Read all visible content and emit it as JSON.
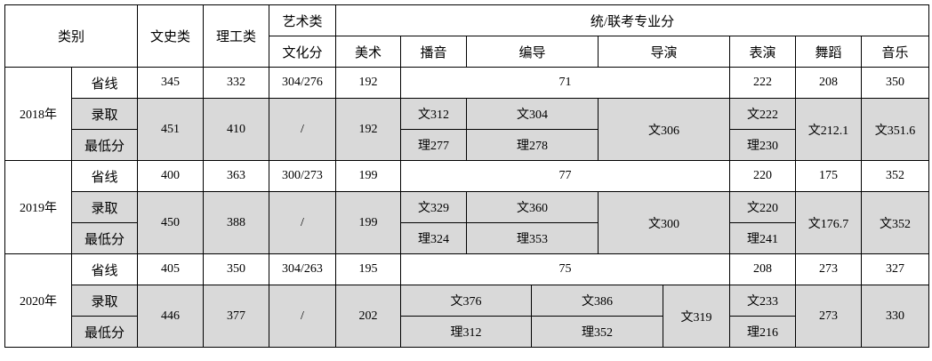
{
  "header": {
    "category": "类别",
    "liberal_arts": "文史类",
    "science": "理工类",
    "art": "艺术类",
    "art_culture": "文化分",
    "joint_exam": "统/联考专业分",
    "fine_arts": "美术",
    "broadcasting": "播音",
    "directing": "编导",
    "film_directing": "导演",
    "acting": "表演",
    "dance": "舞蹈",
    "music": "音乐"
  },
  "row_labels": {
    "province_line": "省线",
    "admission": "录取",
    "min_score": "最低分"
  },
  "years": [
    {
      "year": "2018年",
      "province": {
        "liberal": "345",
        "science": "332",
        "art_culture": "304/276",
        "fine_arts": "192",
        "joint": "71",
        "acting": "222",
        "dance": "208",
        "music": "350"
      },
      "admission": {
        "liberal": "451",
        "science": "410",
        "art_culture": "/",
        "fine_arts": "192",
        "broadcasting_wen": "文312",
        "broadcasting_li": "理277",
        "directing_wen": "文304",
        "directing_li": "理278",
        "film_directing": "文306",
        "acting_wen": "文222",
        "acting_li": "理230",
        "dance": "文212.1",
        "music": "文351.6"
      }
    },
    {
      "year": "2019年",
      "province": {
        "liberal": "400",
        "science": "363",
        "art_culture": "300/273",
        "fine_arts": "199",
        "joint": "77",
        "acting": "220",
        "dance": "175",
        "music": "352"
      },
      "admission": {
        "liberal": "450",
        "science": "388",
        "art_culture": "/",
        "fine_arts": "199",
        "broadcasting_wen": "文329",
        "broadcasting_li": "理324",
        "directing_wen": "文360",
        "directing_li": "理353",
        "film_directing": "文300",
        "acting_wen": "文220",
        "acting_li": "理241",
        "dance": "文176.7",
        "music": "文352"
      }
    },
    {
      "year": "2020年",
      "province": {
        "liberal": "405",
        "science": "350",
        "art_culture": "304/263",
        "fine_arts": "195",
        "joint": "75",
        "acting": "208",
        "dance": "273",
        "music": "327"
      },
      "admission": {
        "liberal": "446",
        "science": "377",
        "art_culture": "/",
        "fine_arts": "202",
        "col_a_wen": "文376",
        "col_a_li": "理312",
        "col_b_wen": "文386",
        "col_b_li": "理352",
        "col_c": "文319",
        "acting_wen": "文233",
        "acting_li": "理216",
        "dance": "273",
        "music": "330"
      }
    }
  ],
  "colors": {
    "shaded": "#d9d9d9"
  }
}
